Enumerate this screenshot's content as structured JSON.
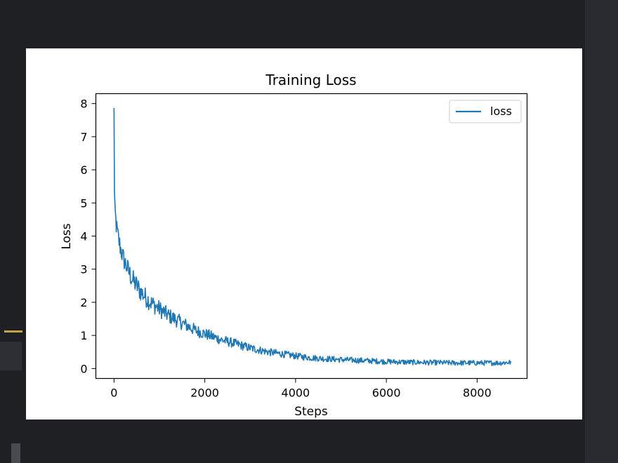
{
  "colors": {
    "background": "#1f2024",
    "figure": "#ffffff",
    "line": "#1f77b4",
    "accent": "#c8a24a"
  },
  "chart_data": {
    "type": "line",
    "title": "Training Loss",
    "xlabel": "Steps",
    "ylabel": "Loss",
    "xlim": [
      -400,
      9100
    ],
    "ylim": [
      -0.3,
      8.3
    ],
    "xticks": [
      0,
      2000,
      4000,
      6000,
      8000
    ],
    "xtick_labels": [
      "0",
      "2000",
      "4000",
      "6000",
      "8000"
    ],
    "yticks": [
      0,
      1,
      2,
      3,
      4,
      5,
      6,
      7,
      8
    ],
    "ytick_labels": [
      "0",
      "1",
      "2",
      "3",
      "4",
      "5",
      "6",
      "7",
      "8"
    ],
    "legend": {
      "placement": "top-right",
      "entries": [
        "loss"
      ]
    },
    "grid": false,
    "series": [
      {
        "name": "loss",
        "color": "#1f77b4",
        "x": [
          0,
          10,
          30,
          60,
          100,
          150,
          200,
          300,
          400,
          500,
          600,
          700,
          800,
          900,
          1000,
          1200,
          1400,
          1600,
          1800,
          2000,
          2200,
          2400,
          2600,
          2800,
          3000,
          3200,
          3400,
          3600,
          3800,
          4000,
          4300,
          4600,
          5000,
          5500,
          6000,
          6500,
          7000,
          7500,
          8000,
          8500,
          8750
        ],
        "y": [
          7.85,
          5.3,
          4.6,
          4.2,
          3.9,
          3.6,
          3.35,
          3.0,
          2.7,
          2.5,
          2.3,
          2.15,
          2.0,
          1.9,
          1.8,
          1.6,
          1.45,
          1.3,
          1.15,
          1.05,
          0.95,
          0.85,
          0.78,
          0.7,
          0.62,
          0.56,
          0.5,
          0.46,
          0.42,
          0.38,
          0.33,
          0.3,
          0.27,
          0.24,
          0.21,
          0.19,
          0.18,
          0.17,
          0.17,
          0.17,
          0.19
        ]
      }
    ]
  }
}
